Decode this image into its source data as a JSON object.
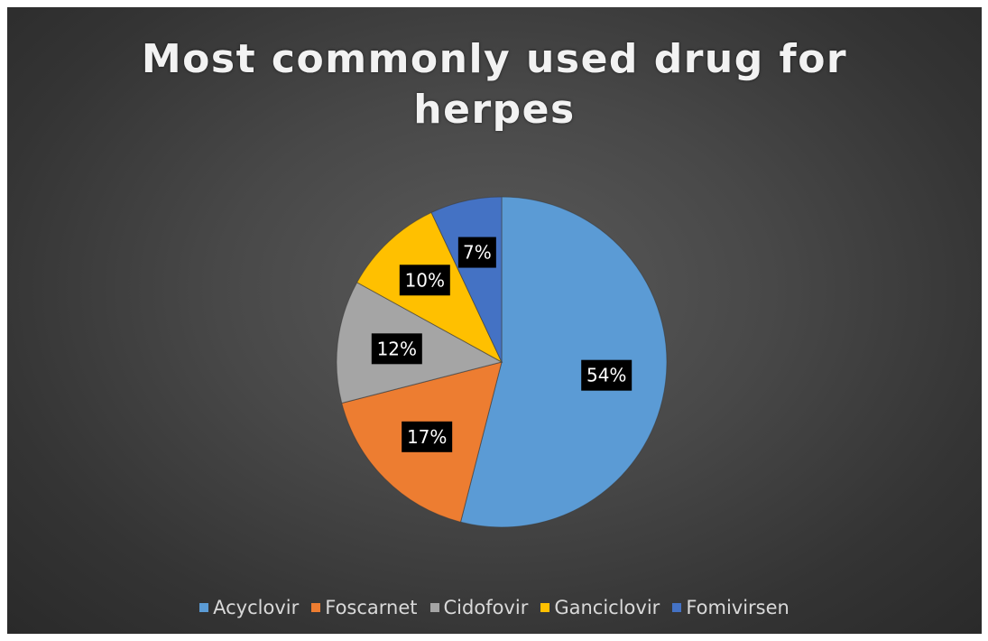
{
  "chart_data": {
    "type": "pie",
    "title_lines": [
      "Most commonly used drug for",
      "herpes"
    ],
    "categories": [
      "Acyclovir",
      "Foscarnet",
      "Cidofovir",
      "Ganciclovir",
      "Fomivirsen"
    ],
    "values": [
      54,
      17,
      12,
      10,
      7
    ],
    "labels": [
      "54%",
      "17%",
      "12%",
      "10%",
      "7%"
    ],
    "colors": [
      "#5B9BD5",
      "#ED7D31",
      "#A5A5A5",
      "#FFC000",
      "#4472C4"
    ],
    "legend_position": "bottom",
    "start_angle": "12 o'clock",
    "direction": "clockwise"
  }
}
